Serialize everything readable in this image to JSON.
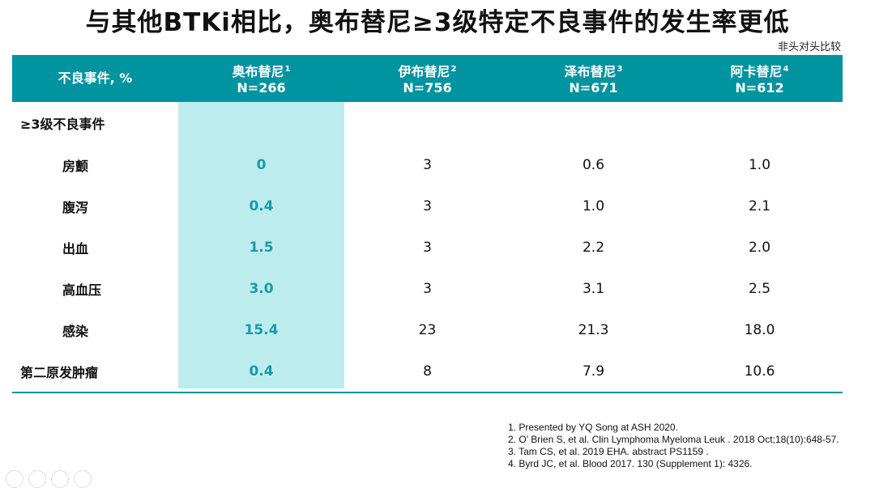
{
  "title": "与其他BTKi相比，奥布替尼≥3级特定不良事件的发生率更低",
  "subtitle": "非头对头比较",
  "table": {
    "row_header_label": "不良事件, %",
    "columns": [
      {
        "name": "奥布替尼",
        "ref": "1",
        "n": "N=266"
      },
      {
        "name": "伊布替尼",
        "ref": "2",
        "n": "N=756"
      },
      {
        "name": "泽布替尼",
        "ref": "3",
        "n": "N=671"
      },
      {
        "name": "阿卡替尼",
        "ref": "4",
        "n": "N=612"
      }
    ],
    "group_label": "≥3级不良事件",
    "rows": [
      {
        "label": "房颤",
        "values": [
          "0",
          "3",
          "0.6",
          "1.0"
        ]
      },
      {
        "label": "腹泻",
        "values": [
          "0.4",
          "3",
          "1.0",
          "2.1"
        ]
      },
      {
        "label": "出血",
        "values": [
          "1.5",
          "3",
          "2.2",
          "2.0"
        ]
      },
      {
        "label": "高血压",
        "values": [
          "3.0",
          "3",
          "3.1",
          "2.5"
        ]
      },
      {
        "label": "感染",
        "values": [
          "15.4",
          "23",
          "21.3",
          "18.0"
        ]
      },
      {
        "label": "第二原发肿瘤",
        "values": [
          "0.4",
          "8",
          "7.9",
          "10.6"
        ]
      }
    ]
  },
  "references": [
    "1. Presented by YQ Song at ASH 2020.",
    "2. O’  Brien S, et al. Clin Lymphoma Myeloma Leuk . 2018 Oct;18(10):648-57.",
    "3. Tam CS, et al. 2019 EHA. abstract PS1159 .",
    "4. Byrd JC, et al. Blood 2017. 130 (Supplement 1): 4326."
  ],
  "colors": {
    "header": "#0093a0",
    "highlight": "#bdecee",
    "accent_text": "#1a9aa8"
  }
}
